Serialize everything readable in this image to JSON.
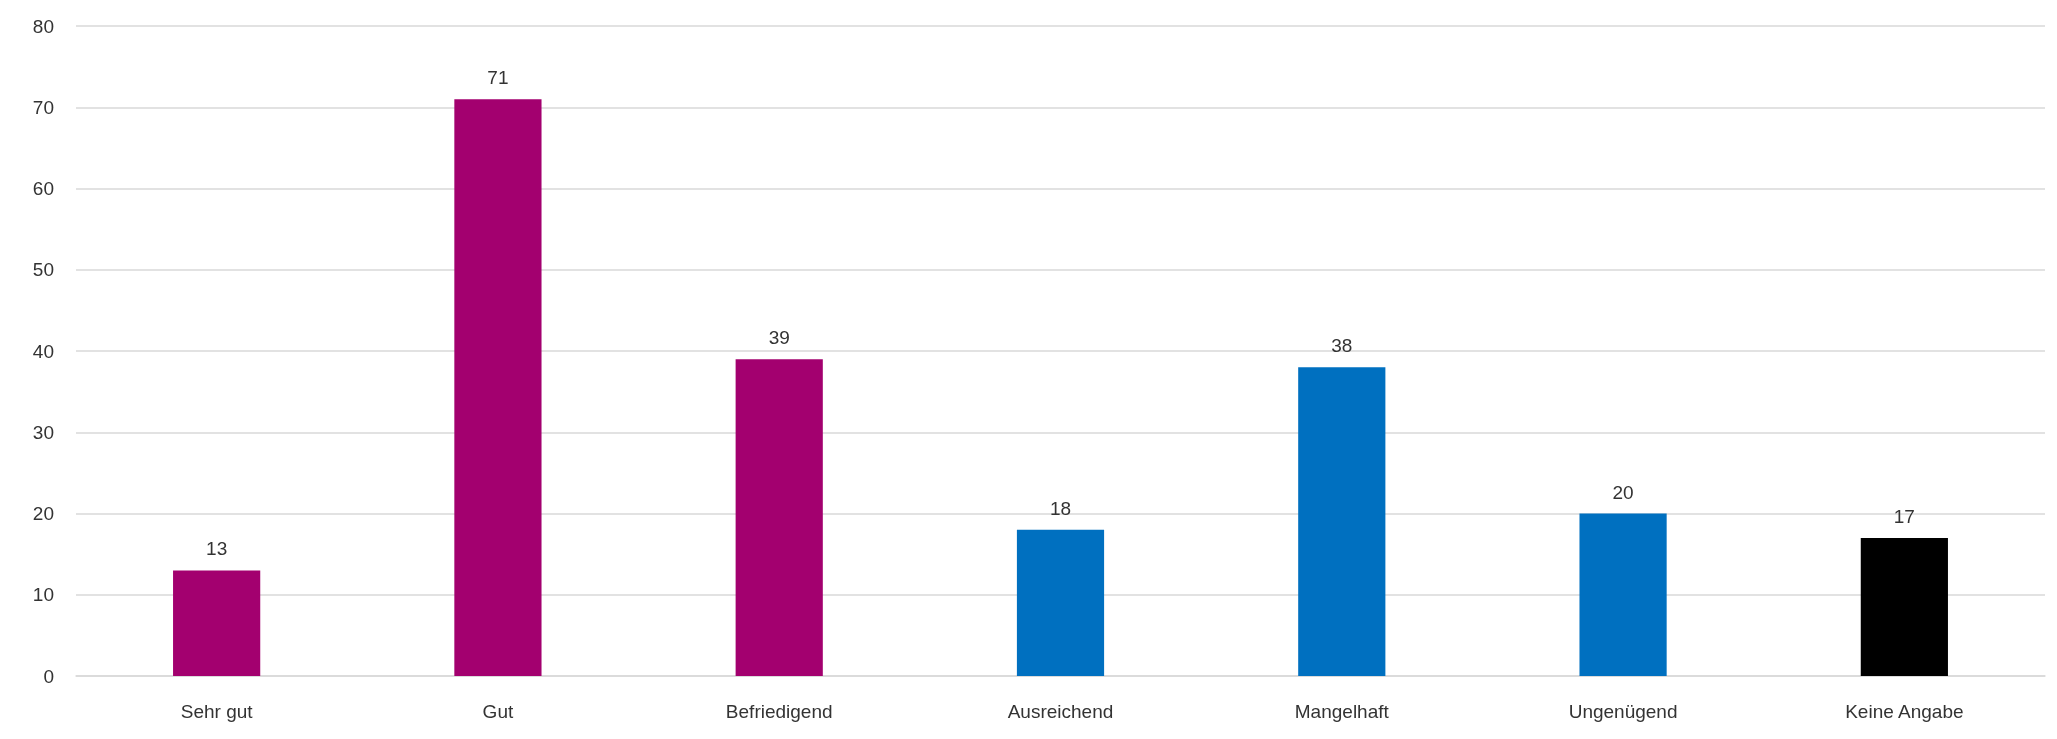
{
  "chart_data": {
    "type": "bar",
    "categories": [
      "Sehr gut",
      "Gut",
      "Befriedigend",
      "Ausreichend",
      "Mangelhaft",
      "Ungenügend",
      "Keine Angabe"
    ],
    "values": [
      13,
      71,
      39,
      18,
      38,
      20,
      17
    ],
    "colors": [
      "#a3006f",
      "#a3006f",
      "#a3006f",
      "#0070c0",
      "#0070c0",
      "#0070c0",
      "#000000"
    ],
    "ylim": [
      0,
      80
    ],
    "yticks": [
      0,
      10,
      20,
      30,
      40,
      50,
      60,
      70,
      80
    ],
    "grid": "y",
    "data_labels": true
  }
}
